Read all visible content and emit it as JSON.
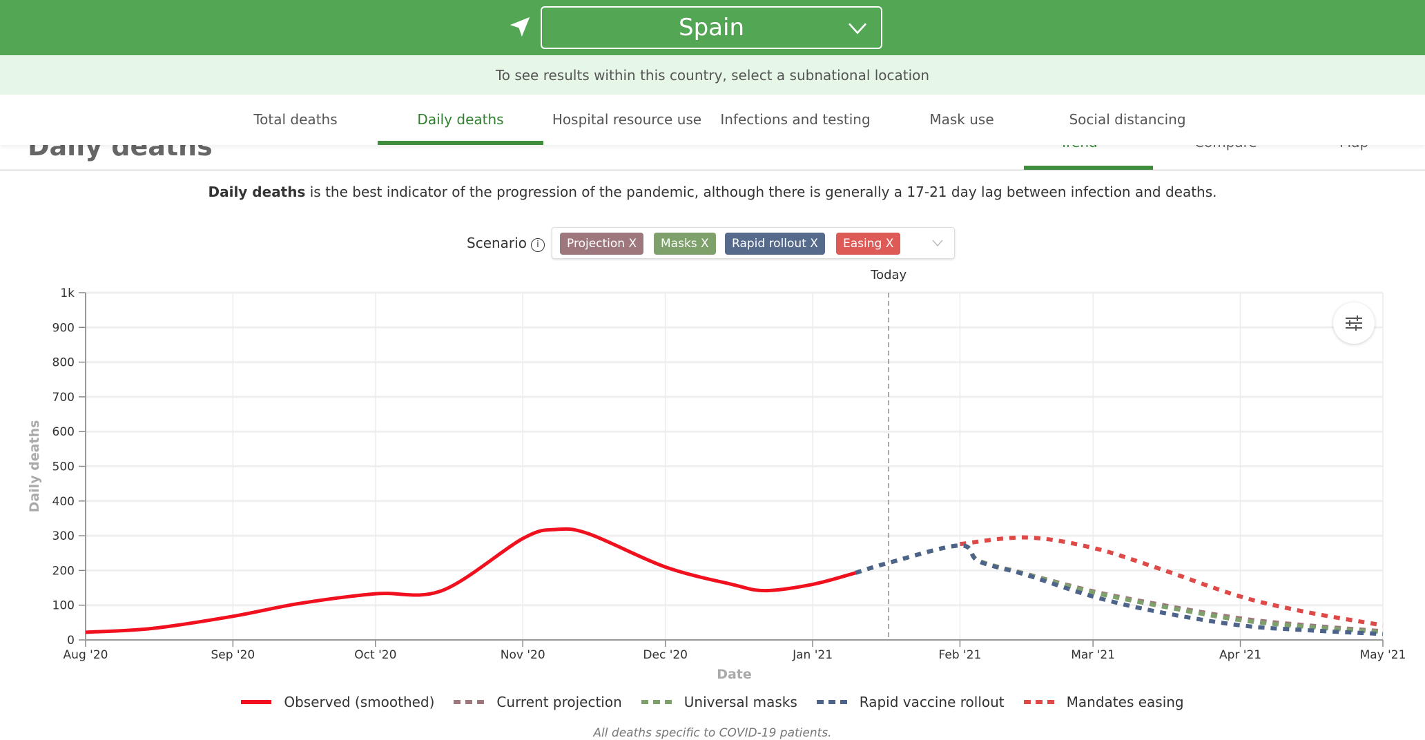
{
  "header": {
    "location": "Spain",
    "location_icon": "navigation-arrow-icon",
    "notice": "To see results within this country, select a subnational location"
  },
  "nav": {
    "tabs": [
      {
        "label": "Total deaths"
      },
      {
        "label": "Daily deaths",
        "active": true
      },
      {
        "label": "Hospital resource use"
      },
      {
        "label": "Infections and testing"
      },
      {
        "label": "Mask use"
      },
      {
        "label": "Social distancing"
      }
    ]
  },
  "section": {
    "title": "Daily deaths",
    "views": [
      {
        "label": "Trend",
        "active": true
      },
      {
        "label": "Compare"
      },
      {
        "label": "Map"
      }
    ]
  },
  "description": {
    "bold": "Daily deaths",
    "rest": " is the best indicator of the progression of the pandemic, although there is generally a 17-21 day lag between infection and deaths."
  },
  "scenario": {
    "label": "Scenario",
    "info": "i",
    "chips": [
      {
        "label": "Projection X",
        "color": "#9e777c"
      },
      {
        "label": "Masks X",
        "color": "#7ea06b"
      },
      {
        "label": "Rapid rollout X",
        "color": "#566b8c"
      },
      {
        "label": "Easing X",
        "color": "#dd5a57"
      }
    ]
  },
  "footnote": "All deaths specific to COVID-19 patients.",
  "chart_data": {
    "type": "line",
    "xlabel": "Date",
    "ylabel": "Daily deaths",
    "xlim": [
      "2020-08-01",
      "2021-05-01"
    ],
    "ylim": [
      0,
      1000
    ],
    "xticks": [
      {
        "date": "2020-08-01",
        "label": "Aug '20"
      },
      {
        "date": "2020-09-01",
        "label": "Sep '20"
      },
      {
        "date": "2020-10-01",
        "label": "Oct '20"
      },
      {
        "date": "2020-11-01",
        "label": "Nov '20"
      },
      {
        "date": "2020-12-01",
        "label": "Dec '20"
      },
      {
        "date": "2021-01-01",
        "label": "Jan '21"
      },
      {
        "date": "2021-02-01",
        "label": "Feb '21"
      },
      {
        "date": "2021-03-01",
        "label": "Mar '21"
      },
      {
        "date": "2021-04-01",
        "label": "Apr '21"
      },
      {
        "date": "2021-05-01",
        "label": "May '21"
      }
    ],
    "yticks": [
      {
        "v": 0,
        "label": "0"
      },
      {
        "v": 100,
        "label": "100"
      },
      {
        "v": 200,
        "label": "200"
      },
      {
        "v": 300,
        "label": "300"
      },
      {
        "v": 400,
        "label": "400"
      },
      {
        "v": 500,
        "label": "500"
      },
      {
        "v": 600,
        "label": "600"
      },
      {
        "v": 700,
        "label": "700"
      },
      {
        "v": 800,
        "label": "800"
      },
      {
        "v": 900,
        "label": "900"
      },
      {
        "v": 1000,
        "label": "1k"
      }
    ],
    "grid": true,
    "today": {
      "date": "2021-01-17",
      "label": "Today"
    },
    "legend_position": "bottom",
    "series": [
      {
        "name": "Observed (smoothed)",
        "color": "#f0101e",
        "style": "solid",
        "points": [
          [
            "2020-08-01",
            22
          ],
          [
            "2020-08-15",
            33
          ],
          [
            "2020-09-01",
            68
          ],
          [
            "2020-09-15",
            105
          ],
          [
            "2020-10-01",
            133
          ],
          [
            "2020-10-15",
            142
          ],
          [
            "2020-11-01",
            292
          ],
          [
            "2020-11-08",
            318
          ],
          [
            "2020-11-15",
            305
          ],
          [
            "2020-12-01",
            210
          ],
          [
            "2020-12-15",
            160
          ],
          [
            "2020-12-22",
            142
          ],
          [
            "2021-01-01",
            160
          ],
          [
            "2021-01-10",
            193
          ]
        ]
      },
      {
        "name": "Current projection",
        "color": "#9e777c",
        "style": "dashed",
        "points": [
          [
            "2021-01-10",
            193
          ],
          [
            "2021-01-17",
            222
          ],
          [
            "2021-02-01",
            272
          ],
          [
            "2021-02-05",
            228
          ],
          [
            "2021-02-15",
            190
          ],
          [
            "2021-03-01",
            140
          ],
          [
            "2021-03-15",
            102
          ],
          [
            "2021-04-01",
            62
          ],
          [
            "2021-04-15",
            42
          ],
          [
            "2021-05-01",
            25
          ]
        ]
      },
      {
        "name": "Universal masks",
        "color": "#7ea06b",
        "style": "dashed",
        "points": [
          [
            "2021-01-10",
            193
          ],
          [
            "2021-01-17",
            222
          ],
          [
            "2021-02-01",
            272
          ],
          [
            "2021-02-05",
            228
          ],
          [
            "2021-02-15",
            189
          ],
          [
            "2021-03-01",
            137
          ],
          [
            "2021-03-15",
            98
          ],
          [
            "2021-04-01",
            57
          ],
          [
            "2021-04-15",
            38
          ],
          [
            "2021-05-01",
            22
          ]
        ]
      },
      {
        "name": "Rapid vaccine rollout",
        "color": "#4d6389",
        "style": "dashed",
        "points": [
          [
            "2021-01-10",
            193
          ],
          [
            "2021-01-17",
            222
          ],
          [
            "2021-02-01",
            272
          ],
          [
            "2021-02-05",
            226
          ],
          [
            "2021-02-15",
            187
          ],
          [
            "2021-03-01",
            125
          ],
          [
            "2021-03-15",
            80
          ],
          [
            "2021-04-01",
            42
          ],
          [
            "2021-04-15",
            28
          ],
          [
            "2021-05-01",
            17
          ]
        ]
      },
      {
        "name": "Mandates easing",
        "color": "#dd4a48",
        "style": "dashed",
        "points": [
          [
            "2021-02-01",
            276
          ],
          [
            "2021-02-15",
            295
          ],
          [
            "2021-03-01",
            265
          ],
          [
            "2021-03-15",
            205
          ],
          [
            "2021-04-01",
            125
          ],
          [
            "2021-04-15",
            80
          ],
          [
            "2021-05-01",
            42
          ]
        ]
      }
    ]
  }
}
